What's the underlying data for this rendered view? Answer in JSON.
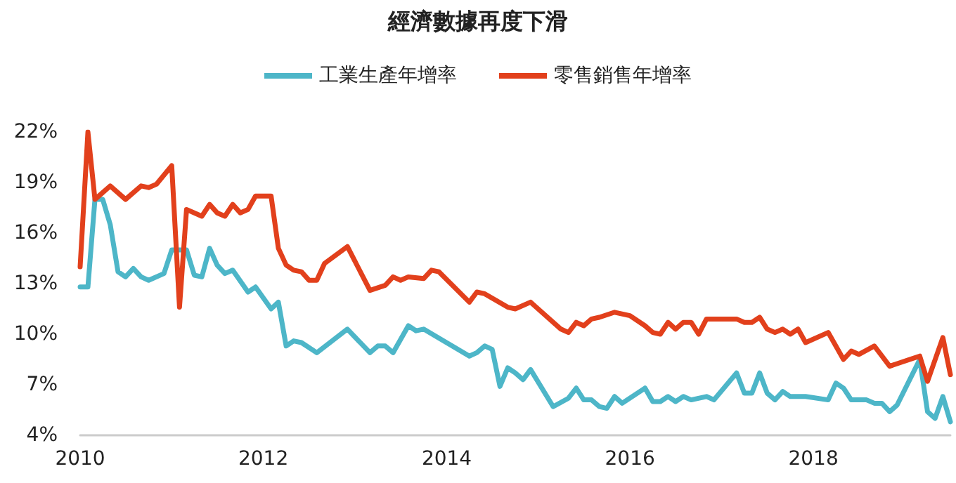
{
  "chart_data": {
    "type": "line",
    "title": "經濟數據再度下滑",
    "series": [
      {
        "name": "工業生產年增率",
        "color": "#4db6c8",
        "x": [
          "2010-01",
          "2010-02",
          "2010-03",
          "2010-04",
          "2010-05",
          "2010-06",
          "2010-07",
          "2010-08",
          "2010-09",
          "2010-10",
          "2010-12",
          "2011-01",
          "2011-02",
          "2011-03",
          "2011-04",
          "2011-05",
          "2011-06",
          "2011-07",
          "2011-08",
          "2011-09",
          "2011-11",
          "2011-12",
          "2012-02",
          "2012-03",
          "2012-04",
          "2012-05",
          "2012-06",
          "2012-08",
          "2012-12",
          "2013-03",
          "2013-04",
          "2013-05",
          "2013-06",
          "2013-08",
          "2013-09",
          "2013-10",
          "2014-04",
          "2014-05",
          "2014-06",
          "2014-07",
          "2014-08",
          "2014-09",
          "2014-10",
          "2014-11",
          "2014-12",
          "2015-03",
          "2015-05",
          "2015-06",
          "2015-07",
          "2015-08",
          "2015-09",
          "2015-10",
          "2015-11",
          "2015-12",
          "2016-03",
          "2016-04",
          "2016-05",
          "2016-06",
          "2016-07",
          "2016-08",
          "2016-09",
          "2016-11",
          "2016-12",
          "2017-03",
          "2017-04",
          "2017-05",
          "2017-06",
          "2017-07",
          "2017-08",
          "2017-09",
          "2017-10",
          "2017-12",
          "2018-03",
          "2018-04",
          "2018-05",
          "2018-06",
          "2018-08",
          "2018-09",
          "2018-10",
          "2018-11",
          "2018-12",
          "2019-03",
          "2019-04",
          "2019-05",
          "2019-06",
          "2019-07"
        ],
        "values": [
          12.8,
          12.8,
          18.0,
          18.0,
          16.5,
          13.7,
          13.4,
          13.9,
          13.4,
          13.2,
          13.6,
          15.0,
          15.0,
          15.0,
          13.5,
          13.4,
          15.1,
          14.1,
          13.6,
          13.8,
          12.5,
          12.8,
          11.5,
          11.9,
          9.3,
          9.6,
          9.5,
          8.9,
          10.3,
          8.9,
          9.3,
          9.3,
          8.9,
          10.5,
          10.2,
          10.3,
          8.7,
          8.9,
          9.3,
          9.1,
          6.9,
          8.0,
          7.7,
          7.3,
          7.9,
          5.7,
          6.2,
          6.8,
          6.1,
          6.1,
          5.7,
          5.6,
          6.3,
          5.9,
          6.8,
          6.0,
          6.0,
          6.3,
          6.0,
          6.3,
          6.1,
          6.3,
          6.1,
          7.7,
          6.5,
          6.5,
          7.7,
          6.5,
          6.1,
          6.6,
          6.3,
          6.3,
          6.1,
          7.1,
          6.8,
          6.1,
          6.1,
          5.9,
          5.9,
          5.4,
          5.8,
          8.5,
          5.4,
          5.0,
          6.3,
          4.8
        ]
      },
      {
        "name": "零售銷售年增率",
        "color": "#e2401c",
        "x": [
          "2010-01",
          "2010-02",
          "2010-03",
          "2010-05",
          "2010-07",
          "2010-09",
          "2010-10",
          "2010-11",
          "2011-01",
          "2011-02",
          "2011-03",
          "2011-05",
          "2011-06",
          "2011-07",
          "2011-08",
          "2011-09",
          "2011-10",
          "2011-11",
          "2011-12",
          "2012-02",
          "2012-03",
          "2012-04",
          "2012-05",
          "2012-06",
          "2012-07",
          "2012-08",
          "2012-09",
          "2012-12",
          "2013-03",
          "2013-05",
          "2013-06",
          "2013-07",
          "2013-08",
          "2013-10",
          "2013-11",
          "2013-12",
          "2014-04",
          "2014-05",
          "2014-06",
          "2014-09",
          "2014-10",
          "2014-12",
          "2015-04",
          "2015-05",
          "2015-06",
          "2015-07",
          "2015-08",
          "2015-09",
          "2015-11",
          "2016-01",
          "2016-03",
          "2016-04",
          "2016-05",
          "2016-06",
          "2016-07",
          "2016-08",
          "2016-09",
          "2016-10",
          "2016-11",
          "2017-03",
          "2017-04",
          "2017-05",
          "2017-06",
          "2017-07",
          "2017-08",
          "2017-09",
          "2017-10",
          "2017-11",
          "2017-12",
          "2018-03",
          "2018-05",
          "2018-06",
          "2018-07",
          "2018-09",
          "2018-11",
          "2019-03",
          "2019-04",
          "2019-06",
          "2019-07"
        ],
        "values": [
          14.0,
          22.0,
          18.0,
          18.8,
          18.0,
          18.8,
          18.7,
          18.9,
          20.0,
          11.6,
          17.4,
          17.0,
          17.7,
          17.2,
          17.0,
          17.7,
          17.2,
          17.4,
          18.2,
          18.2,
          15.1,
          14.1,
          13.8,
          13.7,
          13.2,
          13.2,
          14.2,
          15.2,
          12.6,
          12.9,
          13.4,
          13.2,
          13.4,
          13.3,
          13.8,
          13.7,
          11.9,
          12.5,
          12.4,
          11.6,
          11.5,
          11.9,
          10.3,
          10.1,
          10.7,
          10.5,
          10.9,
          11.0,
          11.3,
          11.1,
          10.5,
          10.1,
          10.0,
          10.7,
          10.3,
          10.7,
          10.7,
          10.0,
          10.9,
          10.9,
          10.7,
          10.7,
          11.0,
          10.3,
          10.1,
          10.3,
          10.0,
          10.3,
          9.5,
          10.1,
          8.5,
          9.0,
          8.8,
          9.3,
          8.1,
          8.7,
          7.2,
          9.8,
          7.6
        ]
      }
    ],
    "xlim": [
      "2010-01",
      "2019-07"
    ],
    "xticks": [
      "2010",
      "2012",
      "2014",
      "2016",
      "2018"
    ],
    "ylim": [
      4,
      22
    ],
    "yticks": [
      {
        "value": 4,
        "label": "4%"
      },
      {
        "value": 7,
        "label": "7%"
      },
      {
        "value": 10,
        "label": "10%"
      },
      {
        "value": 13,
        "label": "13%"
      },
      {
        "value": 16,
        "label": "16%"
      },
      {
        "value": 19,
        "label": "19%"
      },
      {
        "value": 22,
        "label": "22%"
      }
    ],
    "legend": "top",
    "grid": false,
    "marker": "none",
    "line_style": "solid"
  }
}
